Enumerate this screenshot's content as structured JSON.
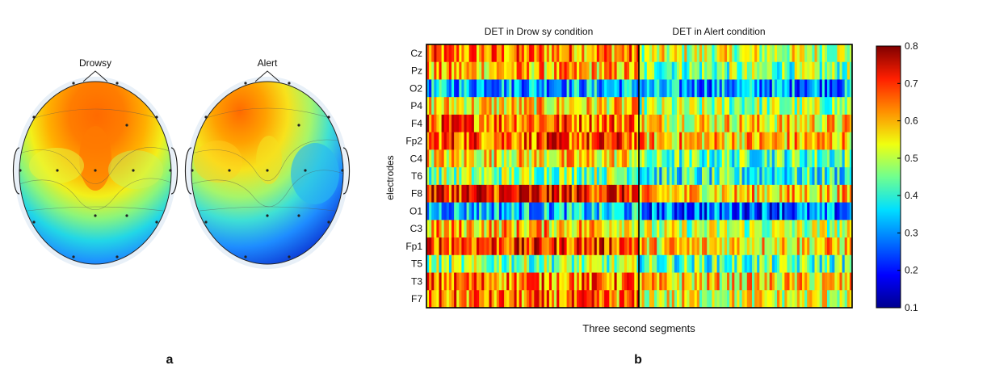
{
  "panels": {
    "a": {
      "label": "a",
      "maps": [
        {
          "title": "Drowsy"
        },
        {
          "title": "Alert"
        }
      ]
    },
    "b": {
      "label": "b"
    }
  },
  "chart_data": [
    {
      "type": "heatmap",
      "title": "",
      "panel": "a",
      "description": "Scalp topographic maps of DET",
      "maps": [
        {
          "name": "Drowsy",
          "pattern": "high frontal/central, low occipital"
        },
        {
          "name": "Alert",
          "pattern": "moderate frontal-left, low right-central and occipital"
        }
      ],
      "colormap": "jet"
    },
    {
      "type": "heatmap",
      "panel": "b",
      "title": "",
      "section_titles": [
        "DET in Drow sy condition",
        "DET in Alert condition"
      ],
      "xlabel": "Three second segments",
      "ylabel": "electrodes",
      "y_categories": [
        "Cz",
        "Pz",
        "O2",
        "P4",
        "F4",
        "Fp2",
        "C4",
        "T6",
        "F8",
        "O1",
        "C3",
        "Fp1",
        "T5",
        "T3",
        "F7"
      ],
      "segments_per_condition": 85,
      "approx_mean_values": {
        "Drowsy": [
          0.62,
          0.58,
          0.32,
          0.55,
          0.65,
          0.66,
          0.55,
          0.46,
          0.7,
          0.33,
          0.58,
          0.68,
          0.45,
          0.63,
          0.62
        ],
        "Alert": [
          0.5,
          0.44,
          0.3,
          0.46,
          0.55,
          0.58,
          0.42,
          0.38,
          0.56,
          0.26,
          0.48,
          0.56,
          0.42,
          0.55,
          0.52
        ]
      },
      "colorbar": {
        "colormap": "jet",
        "range": [
          0.1,
          0.8
        ],
        "ticks": [
          "0.1",
          "0.2",
          "0.3",
          "0.4",
          "0.5",
          "0.6",
          "0.7",
          "0.8"
        ]
      }
    }
  ]
}
